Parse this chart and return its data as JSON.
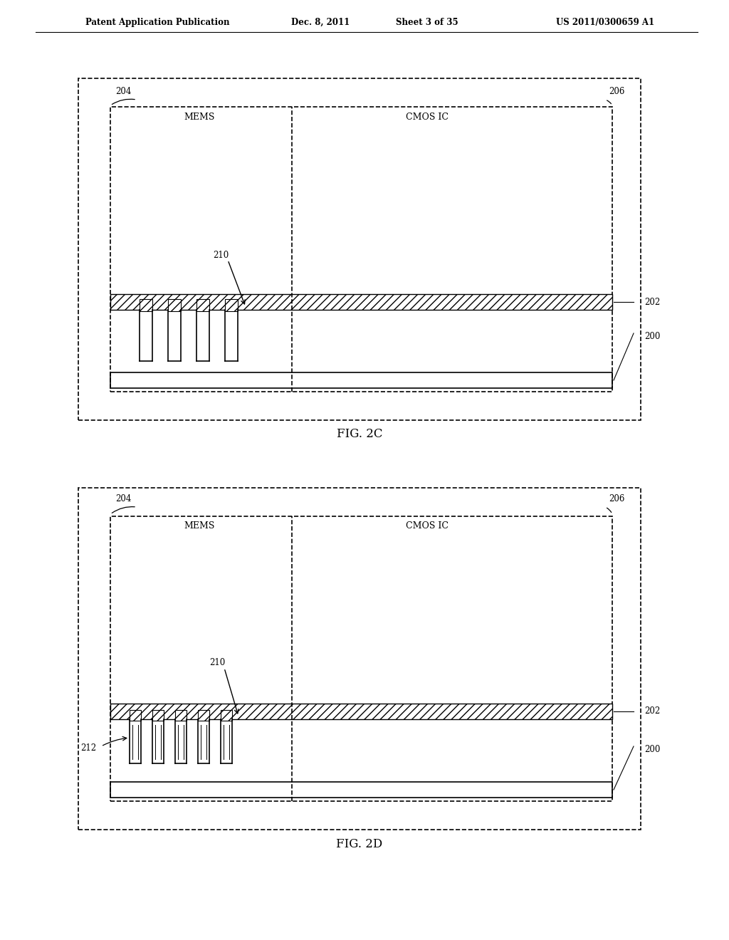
{
  "bg_color": "#ffffff",
  "line_color": "#000000",
  "hatch_color": "#000000",
  "header_text": "Patent Application Publication",
  "header_date": "Dec. 8, 2011",
  "header_sheet": "Sheet 3 of 35",
  "header_patent": "US 2011/0300659 A1",
  "fig2c_label": "FIG. 2C",
  "fig2d_label": "FIG. 2D",
  "label_204": "204",
  "label_206": "206",
  "label_200": "200",
  "label_202": "202",
  "label_210": "210",
  "label_212": "212",
  "label_MEMS": "MEMS",
  "label_CMOS": "CMOS IC"
}
